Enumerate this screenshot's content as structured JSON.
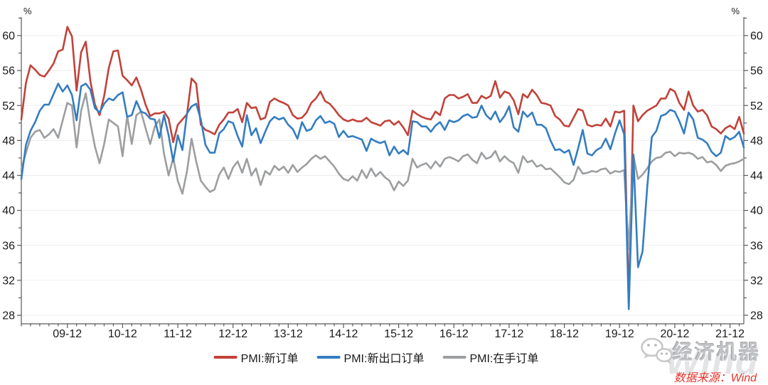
{
  "chart_data": {
    "type": "line",
    "title": "",
    "y_unit": "%",
    "x_start": "2009-02",
    "x_end": "2022-03",
    "x_tick_labels": [
      "09-12",
      "10-12",
      "11-12",
      "12-12",
      "13-12",
      "14-12",
      "15-12",
      "16-12",
      "17-12",
      "18-12",
      "19-12",
      "20-12",
      "21-12"
    ],
    "x_major_indices": [
      10,
      22,
      34,
      46,
      58,
      70,
      82,
      94,
      106,
      118,
      130,
      142,
      154
    ],
    "x_minor_every_months": 2,
    "y_ticks": [
      28,
      32,
      36,
      40,
      44,
      48,
      52,
      56,
      60
    ],
    "y_minor_step": 2,
    "ylim": [
      27,
      62
    ],
    "grid": "horizontal",
    "grid_color": "#ededed",
    "axis_color": "#58595b",
    "label_color": "#1a1a1a",
    "legend_position": "bottom",
    "draw_order": [
      0,
      2,
      1
    ],
    "series": [
      {
        "name": "PMI:新订单",
        "color": "#c2423a",
        "values": [
          50.4,
          54.6,
          56.6,
          56.1,
          55.5,
          55.3,
          56.0,
          56.8,
          58.2,
          58.4,
          61.0,
          59.9,
          53.7,
          58.1,
          59.3,
          54.8,
          52.1,
          50.9,
          53.1,
          56.3,
          58.2,
          58.3,
          55.4,
          54.9,
          54.3,
          55.2,
          53.8,
          52.1,
          50.8,
          51.1,
          51.1,
          51.3,
          50.5,
          47.8,
          49.8,
          50.4,
          51.0,
          55.1,
          54.5,
          49.8,
          49.2,
          49.0,
          48.7,
          49.8,
          50.4,
          51.2,
          51.2,
          51.6,
          50.1,
          52.3,
          51.7,
          51.8,
          50.4,
          50.6,
          52.4,
          52.8,
          52.5,
          52.3,
          52.0,
          50.9,
          50.5,
          50.6,
          51.2,
          52.3,
          52.8,
          53.6,
          52.5,
          52.2,
          51.6,
          50.9,
          50.4,
          50.2,
          50.4,
          50.2,
          50.2,
          50.6,
          50.1,
          49.9,
          49.7,
          50.2,
          50.3,
          49.8,
          50.2,
          49.5,
          48.6,
          51.4,
          51.0,
          50.7,
          50.5,
          50.4,
          51.3,
          50.9,
          52.8,
          53.2,
          53.2,
          52.8,
          53.0,
          53.3,
          52.3,
          52.3,
          53.1,
          52.8,
          53.1,
          54.8,
          52.9,
          53.6,
          53.4,
          52.6,
          51.0,
          53.3,
          52.9,
          53.8,
          53.2,
          52.3,
          52.2,
          52.0,
          50.8,
          50.4,
          49.7,
          49.6,
          50.6,
          51.6,
          51.4,
          49.8,
          49.6,
          49.8,
          49.7,
          50.5,
          49.6,
          51.3,
          51.2,
          51.4,
          29.3,
          52.0,
          50.2,
          50.9,
          51.4,
          51.7,
          52.0,
          52.8,
          52.8,
          53.9,
          53.6,
          52.3,
          51.5,
          53.6,
          52.0,
          51.3,
          51.5,
          50.9,
          49.6,
          49.3,
          48.8,
          49.4,
          49.7,
          49.3,
          50.7,
          48.8
        ]
      },
      {
        "name": "PMI:新出口订单",
        "color": "#347dc1",
        "values": [
          43.6,
          47.5,
          49.1,
          50.1,
          51.4,
          52.1,
          52.1,
          53.3,
          54.5,
          53.6,
          54.3,
          53.2,
          50.3,
          54.2,
          54.5,
          53.8,
          51.7,
          51.2,
          52.2,
          52.8,
          52.6,
          53.2,
          53.5,
          50.7,
          50.9,
          52.5,
          51.3,
          51.1,
          50.5,
          50.4,
          48.3,
          50.9,
          48.6,
          45.6,
          48.6,
          46.9,
          51.1,
          51.9,
          52.2,
          50.4,
          47.5,
          46.6,
          46.6,
          48.8,
          49.3,
          50.2,
          50.0,
          48.5,
          47.3,
          50.9,
          48.6,
          49.4,
          47.7,
          49.0,
          50.2,
          50.7,
          50.4,
          50.6,
          49.8,
          49.3,
          48.2,
          50.1,
          49.1,
          49.3,
          50.3,
          50.8,
          50.0,
          50.2,
          49.9,
          48.4,
          49.1,
          48.4,
          48.5,
          48.3,
          48.1,
          46.8,
          48.2,
          47.9,
          47.7,
          47.9,
          46.3,
          47.3,
          46.5,
          46.9,
          46.4,
          50.2,
          50.1,
          49.6,
          49.6,
          49.0,
          49.7,
          50.1,
          49.2,
          50.3,
          50.1,
          50.3,
          50.8,
          51.0,
          50.6,
          50.7,
          52.0,
          50.9,
          50.4,
          51.3,
          50.1,
          50.8,
          51.9,
          49.5,
          49.0,
          51.3,
          50.7,
          51.2,
          49.8,
          49.8,
          49.4,
          48.0,
          46.9,
          47.0,
          46.6,
          46.9,
          45.2,
          47.1,
          49.2,
          46.5,
          46.3,
          46.9,
          47.2,
          48.2,
          47.0,
          48.8,
          50.3,
          48.7,
          28.7,
          46.4,
          33.5,
          35.3,
          42.6,
          48.4,
          49.1,
          50.8,
          51.0,
          51.5,
          51.3,
          50.2,
          48.8,
          51.2,
          50.4,
          48.3,
          48.1,
          47.7,
          46.7,
          46.2,
          46.6,
          48.5,
          48.1,
          48.4,
          49.0,
          47.2
        ]
      },
      {
        "name": "PMI:在手订单",
        "color": "#9c9ea0",
        "values": [
          44.7,
          46.6,
          48.3,
          49.0,
          49.2,
          48.3,
          48.7,
          49.3,
          48.3,
          50.3,
          52.3,
          52.0,
          47.2,
          51.4,
          53.4,
          50.0,
          47.3,
          45.4,
          47.6,
          50.4,
          50.0,
          49.6,
          46.2,
          50.8,
          47.6,
          50.9,
          51.3,
          49.4,
          47.6,
          49.6,
          50.4,
          46.5,
          44.0,
          46.0,
          43.4,
          41.9,
          44.5,
          48.2,
          45.6,
          43.4,
          42.7,
          42.1,
          42.4,
          44.1,
          44.9,
          43.6,
          44.9,
          45.6,
          44.3,
          45.9,
          44.0,
          44.8,
          42.9,
          44.5,
          44.1,
          45.1,
          44.6,
          45.0,
          44.3,
          45.2,
          44.4,
          44.9,
          45.3,
          45.9,
          46.3,
          45.9,
          46.2,
          45.6,
          45.0,
          44.2,
          43.6,
          43.4,
          43.9,
          43.4,
          44.6,
          43.7,
          44.8,
          43.9,
          44.4,
          43.8,
          43.4,
          42.3,
          43.3,
          42.8,
          43.4,
          45.9,
          44.9,
          45.2,
          45.4,
          44.8,
          45.6,
          45.0,
          45.9,
          46.1,
          45.9,
          45.6,
          46.2,
          46.4,
          45.8,
          45.4,
          46.6,
          45.9,
          46.1,
          46.8,
          45.6,
          46.2,
          45.7,
          45.4,
          44.3,
          46.2,
          45.5,
          45.7,
          45.0,
          45.2,
          44.7,
          44.8,
          44.3,
          43.8,
          43.2,
          43.0,
          43.5,
          45.0,
          44.2,
          44.3,
          44.5,
          44.4,
          44.7,
          44.8,
          44.2,
          44.5,
          44.4,
          44.6,
          35.6,
          46.3,
          43.6,
          44.1,
          44.8,
          45.6,
          46.0,
          46.1,
          46.6,
          46.7,
          46.2,
          46.6,
          46.5,
          46.6,
          46.4,
          45.9,
          46.1,
          45.5,
          45.6,
          45.2,
          44.5,
          45.1,
          45.3,
          45.4,
          45.6,
          45.9
        ]
      }
    ]
  },
  "legend": {
    "items": [
      {
        "label": "PMI:新订单"
      },
      {
        "label": "PMI:新出口订单"
      },
      {
        "label": "PMI:在手订单"
      }
    ]
  },
  "watermark": {
    "brand": "经济机器",
    "wind": "Wind"
  },
  "footer": {
    "source": "数据来源：Wind"
  }
}
